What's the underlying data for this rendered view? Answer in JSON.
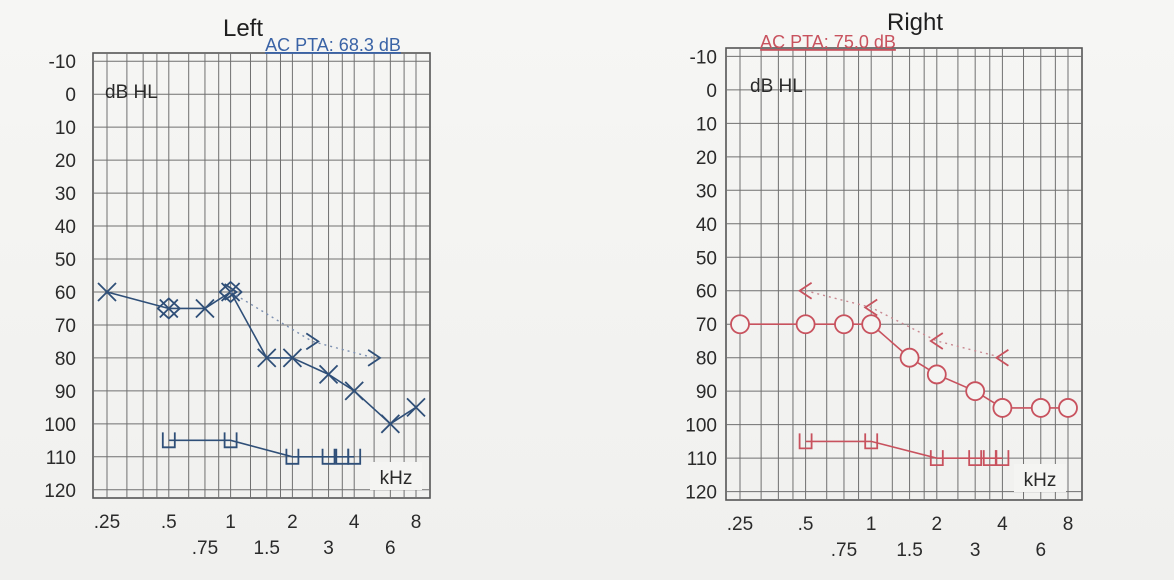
{
  "chart_data": [
    {
      "type": "line",
      "title": "Left",
      "subtitle": "AC PTA: 68.3 dB",
      "ylabel": "dB HL",
      "xlabel": "kHz",
      "ylim": [
        -10,
        120
      ],
      "y_ticks": [
        "-10",
        "0",
        "10",
        "20",
        "30",
        "40",
        "50",
        "60",
        "70",
        "80",
        "90",
        "100",
        "110",
        "120"
      ],
      "x_tick_labels_upper": [
        ".25",
        ".5",
        "1",
        "2",
        "4",
        "8"
      ],
      "x_tick_labels_lower": [
        ".75",
        "1.5",
        "3",
        "6"
      ],
      "colors": {
        "ink": "#2f4f78",
        "grid": "#707070",
        "subtitle": "#3a63a6",
        "masked": "#7b8fb0"
      },
      "series": [
        {
          "symbol": "X",
          "style": "solid",
          "points": [
            {
              "x": 0.25,
              "y": 60
            },
            {
              "x": 0.5,
              "y": 65
            },
            {
              "x": 0.75,
              "y": 65
            },
            {
              "x": 1,
              "y": 60
            },
            {
              "x": 1.5,
              "y": 80
            },
            {
              "x": 2,
              "y": 80
            },
            {
              "x": 3,
              "y": 85
            },
            {
              "x": 4,
              "y": 90
            },
            {
              "x": 6,
              "y": 100
            },
            {
              "x": 8,
              "y": 95
            }
          ]
        },
        {
          "symbol": "diamond",
          "style": "none",
          "points": [
            {
              "x": 0.5,
              "y": 65
            },
            {
              "x": 1,
              "y": 60
            }
          ]
        },
        {
          "symbol": ">",
          "style": "dotted",
          "points": [
            {
              "x": 1,
              "y": 60
            },
            {
              "x": 2.5,
              "y": 75
            },
            {
              "x": 5,
              "y": 80
            }
          ]
        },
        {
          "symbol": "]",
          "style": "solid",
          "points": [
            {
              "x": 0.5,
              "y": 105
            },
            {
              "x": 1,
              "y": 105
            },
            {
              "x": 2,
              "y": 110
            },
            {
              "x": 3,
              "y": 110
            },
            {
              "x": 3.5,
              "y": 110
            },
            {
              "x": 4,
              "y": 110
            }
          ]
        }
      ]
    },
    {
      "type": "line",
      "title": "Right",
      "subtitle": "AC PTA: 75.0 dB",
      "ylabel": "dB HL",
      "xlabel": "kHz",
      "ylim": [
        -10,
        120
      ],
      "y_ticks": [
        "-10",
        "0",
        "10",
        "20",
        "30",
        "40",
        "50",
        "60",
        "70",
        "80",
        "90",
        "100",
        "110",
        "120"
      ],
      "x_tick_labels_upper": [
        ".25",
        ".5",
        "1",
        "2",
        "4",
        "8"
      ],
      "x_tick_labels_lower": [
        ".75",
        "1.5",
        "3",
        "6"
      ],
      "colors": {
        "ink": "#c8525e",
        "grid": "#707070",
        "subtitle": "#c8525e",
        "masked": "#c88890"
      },
      "series": [
        {
          "symbol": "O",
          "style": "solid",
          "points": [
            {
              "x": 0.25,
              "y": 70
            },
            {
              "x": 0.5,
              "y": 70
            },
            {
              "x": 0.75,
              "y": 70
            },
            {
              "x": 1,
              "y": 70
            },
            {
              "x": 1.5,
              "y": 80
            },
            {
              "x": 2,
              "y": 85
            },
            {
              "x": 3,
              "y": 90
            },
            {
              "x": 4,
              "y": 95
            },
            {
              "x": 6,
              "y": 95
            },
            {
              "x": 8,
              "y": 95
            }
          ]
        },
        {
          "symbol": "<",
          "style": "dotted",
          "points": [
            {
              "x": 0.5,
              "y": 60
            },
            {
              "x": 1,
              "y": 65
            },
            {
              "x": 2,
              "y": 75
            },
            {
              "x": 4,
              "y": 80
            }
          ]
        },
        {
          "symbol": "[",
          "style": "solid",
          "points": [
            {
              "x": 0.5,
              "y": 105
            },
            {
              "x": 1,
              "y": 105
            },
            {
              "x": 2,
              "y": 110
            },
            {
              "x": 3,
              "y": 110
            },
            {
              "x": 3.5,
              "y": 110
            },
            {
              "x": 4,
              "y": 110
            }
          ]
        }
      ]
    }
  ]
}
